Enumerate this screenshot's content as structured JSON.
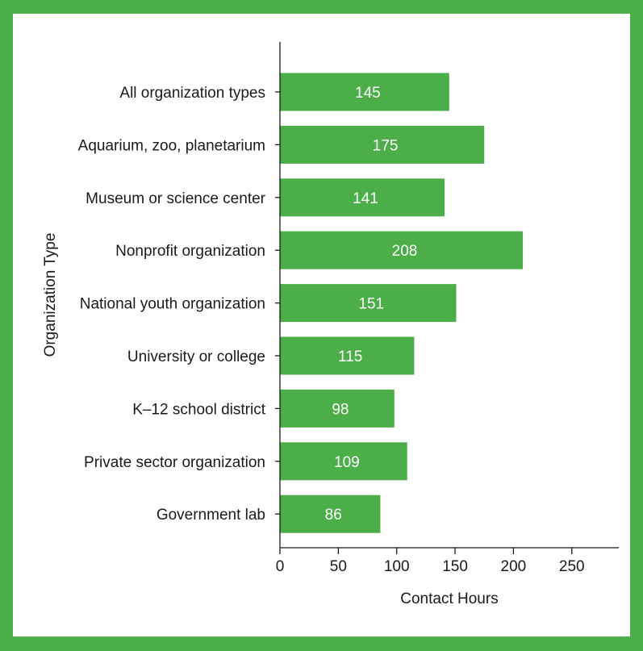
{
  "chart_data": {
    "type": "bar",
    "orientation": "horizontal",
    "categories": [
      "All organization types",
      "Aquarium, zoo, planetarium",
      "Museum or science center",
      "Nonprofit organization",
      "National youth organization",
      "University or college",
      "K–12 school district",
      "Private sector organization",
      "Government lab"
    ],
    "values": [
      145,
      175,
      141,
      208,
      151,
      115,
      98,
      109,
      86
    ],
    "xlabel": "Contact Hours",
    "ylabel": "Organization Type",
    "xlim": [
      0,
      290
    ],
    "xticks": [
      0,
      50,
      100,
      150,
      200,
      250
    ],
    "grid": false,
    "legend": "none",
    "bar_color": "#4cae48",
    "value_label_color": "#ffffff"
  },
  "frame_color": "#4cae48"
}
